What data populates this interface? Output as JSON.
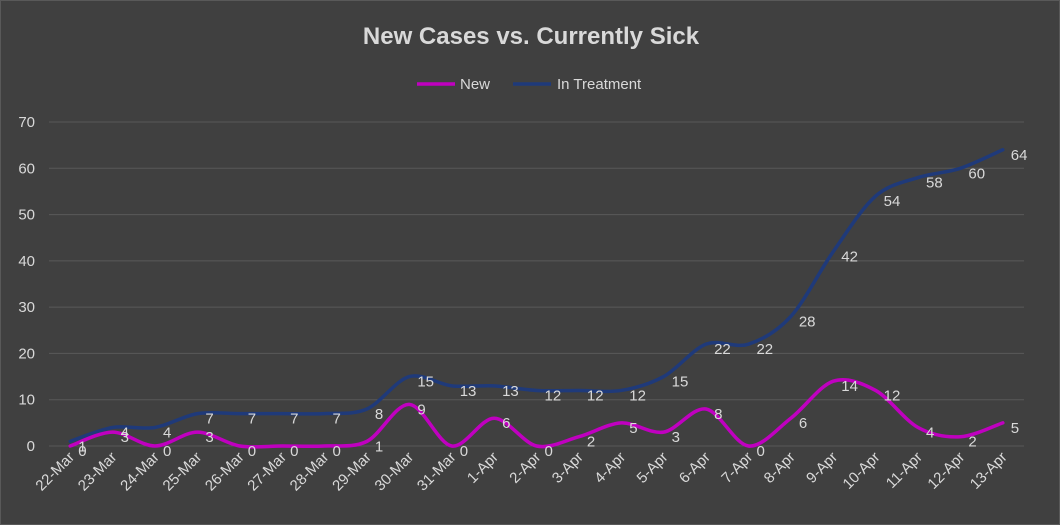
{
  "chart_data": {
    "type": "line",
    "title": "New Cases vs. Currently Sick",
    "xlabel": "",
    "ylabel": "",
    "ylim": [
      0,
      70
    ],
    "yticks": [
      0,
      10,
      20,
      30,
      40,
      50,
      60,
      70
    ],
    "grid": true,
    "legend_position": "top",
    "categories": [
      "22-Mar",
      "23-Mar",
      "24-Mar",
      "25-Mar",
      "26-Mar",
      "27-Mar",
      "28-Mar",
      "29-Mar",
      "30-Mar",
      "31-Mar",
      "1-Apr",
      "2-Apr",
      "3-Apr",
      "4-Apr",
      "5-Apr",
      "6-Apr",
      "7-Apr",
      "8-Apr",
      "9-Apr",
      "10-Apr",
      "11-Apr",
      "12-Apr",
      "13-Apr"
    ],
    "series": [
      {
        "name": "New",
        "color": "#c000c0",
        "values": [
          0,
          3,
          0,
          3,
          0,
          0,
          0,
          1,
          9,
          0,
          6,
          0,
          2,
          5,
          3,
          8,
          0,
          6,
          14,
          12,
          4,
          2,
          5
        ]
      },
      {
        "name": "In Treatment",
        "color": "#1f3a7a",
        "values": [
          1,
          4,
          4,
          7,
          7,
          7,
          7,
          8,
          15,
          13,
          13,
          12,
          12,
          12,
          15,
          22,
          22,
          28,
          42,
          54,
          58,
          60,
          64
        ]
      }
    ]
  }
}
